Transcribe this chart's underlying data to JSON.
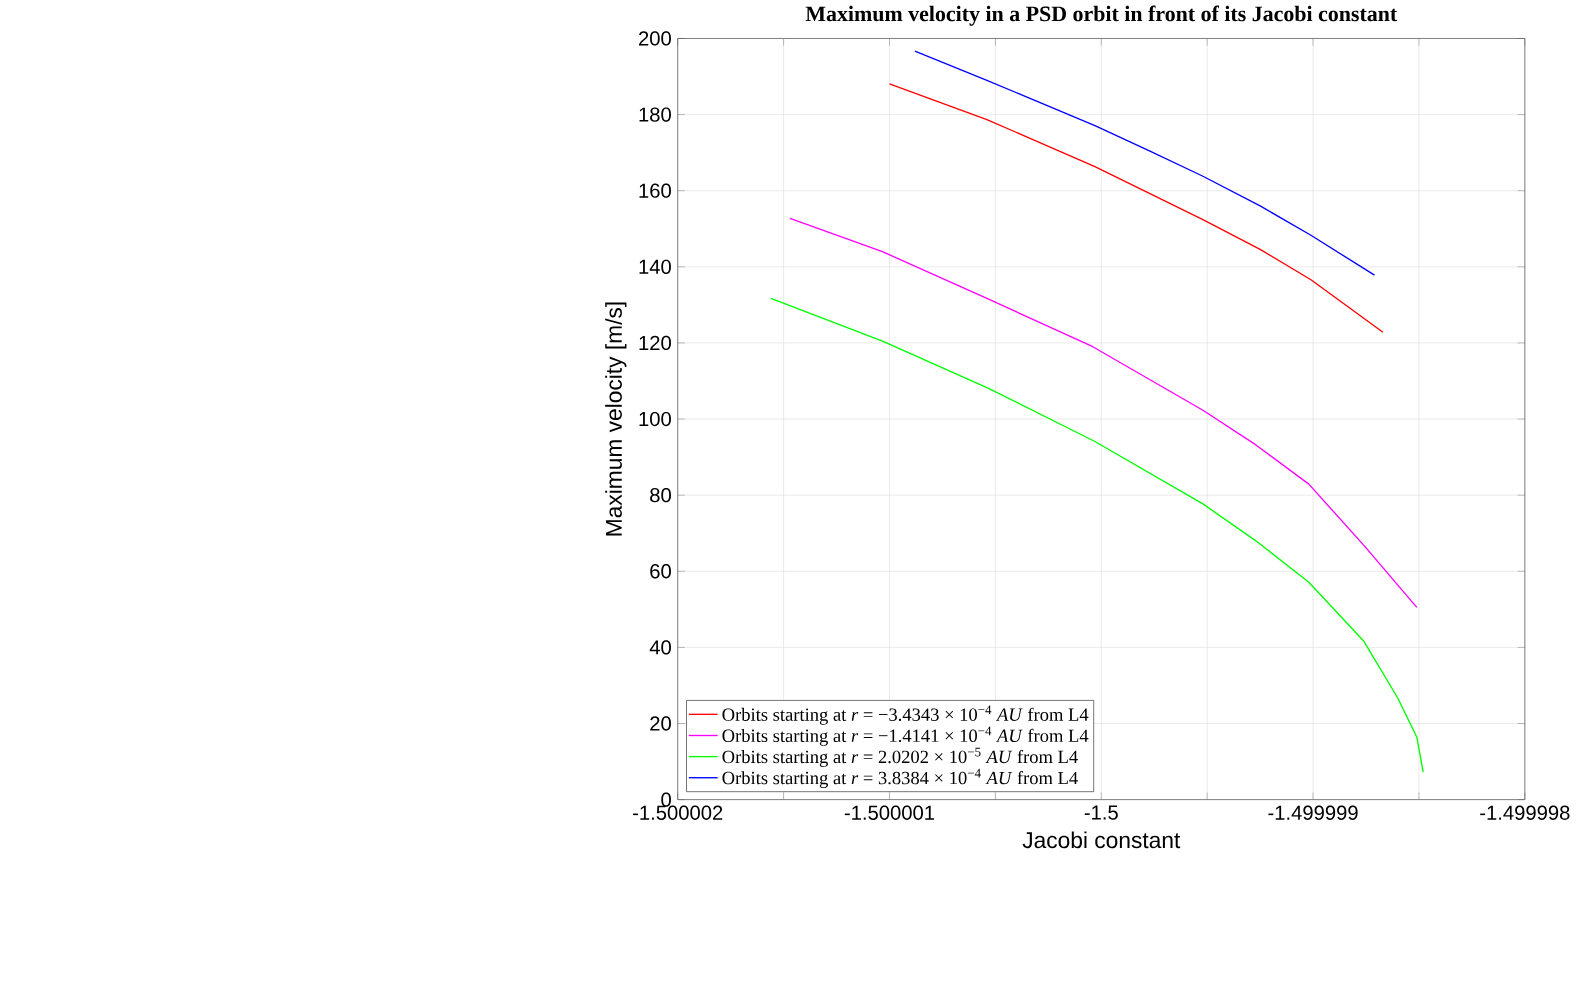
{
  "chart_data": {
    "type": "line",
    "title": "**Maximum velocity in a PSD orbit in front of its Jacobi constant**",
    "xlabel": "Jacobi constant",
    "ylabel": "Maximum velocity [m/s]",
    "xlim": [
      -1.500002,
      -1.499998
    ],
    "ylim": [
      0,
      200
    ],
    "xticks": [
      -1.500002,
      {
        "value": -1.5000015,
        "label": null
      },
      -1.500001,
      {
        "value": -1.5000005,
        "label": null
      },
      -1.5,
      {
        "value": -1.4999995,
        "label": null
      },
      -1.499999,
      {
        "value": -1.4999985,
        "label": null
      },
      -1.499998
    ],
    "yticks": [
      0,
      20,
      40,
      60,
      80,
      100,
      120,
      140,
      160,
      180,
      200
    ],
    "grid": true,
    "legend": "bottom left",
    "line_style": "solid",
    "series": [
      {
        "name": "Orbits starting at *r* = −3.4343 × 10$^{−4}$ *AU* from L4",
        "color": "#ff0000",
        "x": [
          -1.500001,
          -1.50000054,
          -1.50000003,
          -1.49999952,
          -1.49999925,
          -1.49999901,
          -1.49999867
        ],
        "values": [
          188.1,
          178.7,
          166.3,
          152.4,
          144.6,
          136.6,
          122.8
        ]
      },
      {
        "name": "Orbits starting at *r* = −1.4141 × 10$^{−4}$ *AU* from L4",
        "color": "#ff00ff",
        "x": [
          -1.50000147,
          -1.50000103,
          -1.50000054,
          -1.50000004,
          -1.49999952,
          -1.49999927,
          -1.49999902,
          -1.49999876,
          -1.49999851
        ],
        "values": [
          152.7,
          143.9,
          131.7,
          119.0,
          102.3,
          93.2,
          82.9,
          66.8,
          50.5
        ]
      },
      {
        "name": "Orbits starting at *r* = 2.0202 × 10$^{−5}$ *AU* from L4",
        "color": "#00ff00",
        "x": [
          -1.50000156,
          -1.50000103,
          -1.50000053,
          -1.50000003,
          -1.49999952,
          -1.49999927,
          -1.49999902,
          -1.49999876,
          -1.4999986,
          -1.49999851,
          -1.49999848
        ],
        "values": [
          131.7,
          120.4,
          108.0,
          94.1,
          77.7,
          68.0,
          57.1,
          41.6,
          26.7,
          16.4,
          7.2
        ]
      },
      {
        "name": "Orbits starting at *r* = 3.8384 × 10$^{−4}$ *AU* from L4",
        "color": "#0000ff",
        "x": [
          -1.50000088,
          -1.50000054,
          -1.50000003,
          -1.49999977,
          -1.49999952,
          -1.49999925,
          -1.49999901,
          -1.49999871
        ],
        "values": [
          196.7,
          189.0,
          177.1,
          170.4,
          163.8,
          156.0,
          148.3,
          137.8
        ]
      }
    ]
  }
}
